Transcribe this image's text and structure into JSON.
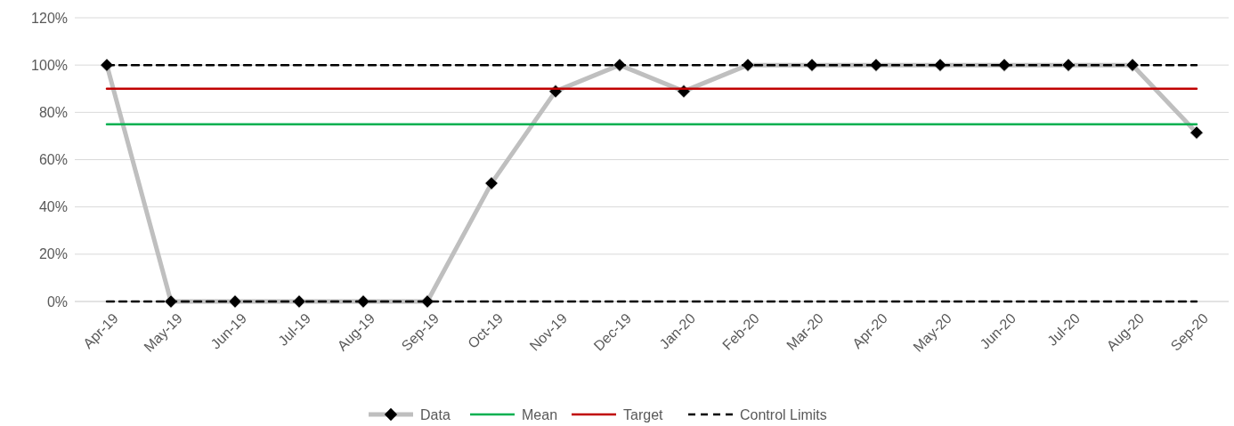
{
  "chart_data": {
    "type": "line",
    "categories": [
      "Apr-19",
      "May-19",
      "Jun-19",
      "Jul-19",
      "Aug-19",
      "Sep-19",
      "Oct-19",
      "Nov-19",
      "Dec-19",
      "Jan-20",
      "Feb-20",
      "Mar-20",
      "Apr-20",
      "May-20",
      "Jun-20",
      "Jul-20",
      "Aug-20",
      "Sep-20"
    ],
    "series": [
      {
        "name": "Data",
        "color": "#bfbfbf",
        "marker": "diamond",
        "line_style": "solid",
        "values": [
          100,
          0,
          0,
          0,
          0,
          0,
          50,
          88.9,
          100,
          88.9,
          100,
          100,
          100,
          100,
          100,
          100,
          100,
          71.4
        ]
      },
      {
        "name": "Mean",
        "color": "#00b050",
        "marker": "none",
        "line_style": "solid",
        "values": [
          75,
          75,
          75,
          75,
          75,
          75,
          75,
          75,
          75,
          75,
          75,
          75,
          75,
          75,
          75,
          75,
          75,
          75
        ]
      },
      {
        "name": "Target",
        "color": "#c00000",
        "marker": "none",
        "line_style": "solid",
        "values": [
          90,
          90,
          90,
          90,
          90,
          90,
          90,
          90,
          90,
          90,
          90,
          90,
          90,
          90,
          90,
          90,
          90,
          90
        ]
      },
      {
        "name": "Control Limits",
        "color": "#000000",
        "marker": "none",
        "line_style": "dashed",
        "values": [
          100,
          100,
          100,
          100,
          100,
          100,
          100,
          100,
          100,
          100,
          100,
          100,
          100,
          100,
          100,
          100,
          100,
          100
        ]
      },
      {
        "color": "#000000",
        "marker": "none",
        "line_style": "dashed",
        "values": [
          0,
          0,
          0,
          0,
          0,
          0,
          0,
          0,
          0,
          0,
          0,
          0,
          0,
          0,
          0,
          0,
          0,
          0
        ]
      }
    ],
    "ylim": [
      0,
      120
    ],
    "yticks": [
      {
        "value": 0,
        "label": "0%"
      },
      {
        "value": 20,
        "label": "20%"
      },
      {
        "value": 40,
        "label": "40%"
      },
      {
        "value": 60,
        "label": "60%"
      },
      {
        "value": 80,
        "label": "80%"
      },
      {
        "value": 100,
        "label": "100%"
      },
      {
        "value": 120,
        "label": "120%"
      }
    ],
    "grid": "y",
    "legend": "bottom"
  }
}
